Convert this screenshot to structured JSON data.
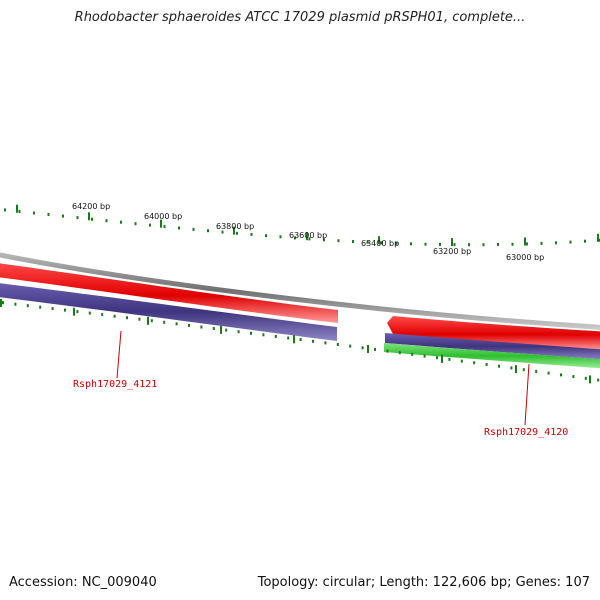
{
  "title": "Rhodobacter sphaeroides ATCC 17029 plasmid pRSPH01, complete...",
  "footer": {
    "accession": "Accession: NC_009040",
    "summary": "Topology: circular; Length: 122,606 bp; Genes: 107"
  },
  "scale_labels": [
    "64200 bp",
    "64000 bp",
    "63800 bp",
    "63600 bp",
    "63400 bp",
    "63200 bp",
    "63000 bp"
  ],
  "genes": [
    {
      "name": "Rsph17029_4121",
      "color": "#cc0000"
    },
    {
      "name": "Rsph17029_4120",
      "color": "#cc0000"
    }
  ],
  "colors": {
    "backbone": "#808080",
    "cds": "#ee0000",
    "gene_bar": "#483d8b",
    "rna_bar": "#33cc33",
    "ticks": "#1a7a1a"
  }
}
